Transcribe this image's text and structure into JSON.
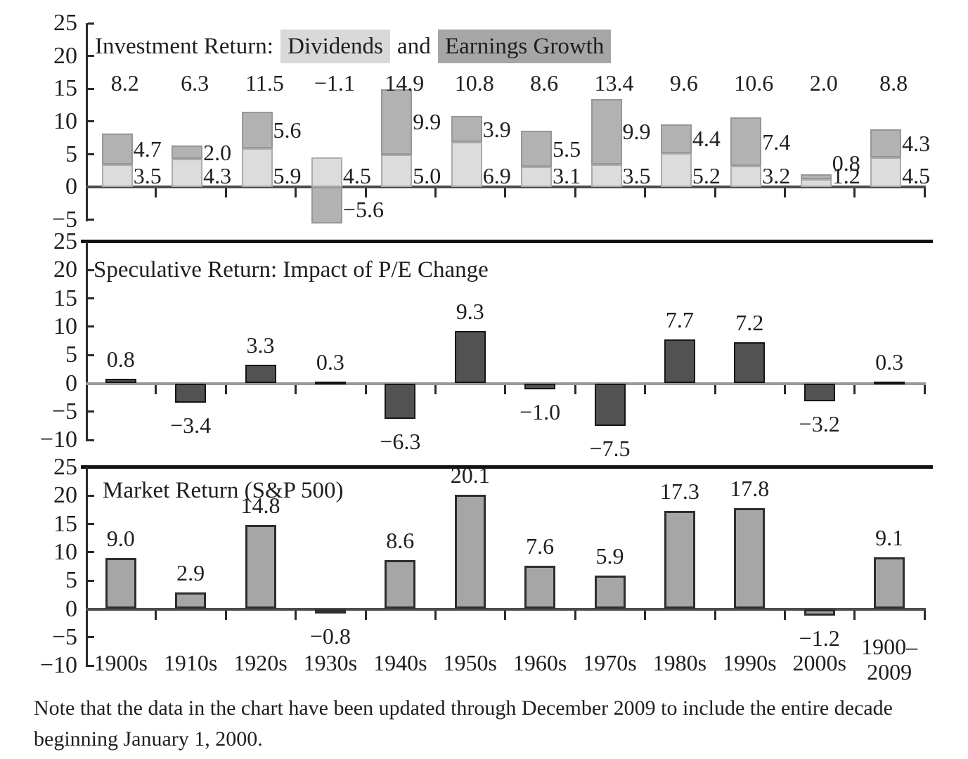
{
  "page": {
    "background": "#ffffff",
    "note": "Note that the data in the chart have been updated through December 2009 to include the entire decade beginning January 1, 2000."
  },
  "chart_data": [
    {
      "id": "investment-return",
      "type": "bar",
      "stacked": true,
      "title_prefix": "Investment Return:",
      "title_join": "and",
      "legend": [
        {
          "label": "Dividends",
          "color": "#d9d9d9"
        },
        {
          "label": "Earnings Growth",
          "color": "#a6a6a6"
        }
      ],
      "legend_position": "title-inline",
      "grid": false,
      "categories": [
        "1900s",
        "1910s",
        "1920s",
        "1930s",
        "1940s",
        "1950s",
        "1960s",
        "1970s",
        "1980s",
        "1990s",
        "2000s",
        "1900–2009"
      ],
      "series": [
        {
          "name": "Dividends",
          "values": [
            3.5,
            4.3,
            5.9,
            4.5,
            5.0,
            6.9,
            3.1,
            3.5,
            5.2,
            3.2,
            1.2,
            4.5
          ]
        },
        {
          "name": "Earnings Growth",
          "values": [
            4.7,
            2.0,
            5.6,
            -5.6,
            9.9,
            3.9,
            5.5,
            9.9,
            4.4,
            7.4,
            0.8,
            4.3
          ]
        }
      ],
      "totals": [
        8.2,
        6.3,
        11.5,
        -1.1,
        14.9,
        10.8,
        8.6,
        13.4,
        9.6,
        10.6,
        2.0,
        8.8
      ],
      "ylim": [
        -5,
        25
      ],
      "yticks": [
        25,
        20,
        15,
        10,
        5,
        0,
        -5
      ]
    },
    {
      "id": "speculative-return",
      "type": "bar",
      "stacked": false,
      "title": "Speculative Return: Impact of P/E Change",
      "bar_color": "#525252",
      "grid": false,
      "categories": [
        "1900s",
        "1910s",
        "1920s",
        "1930s",
        "1940s",
        "1950s",
        "1960s",
        "1970s",
        "1980s",
        "1990s",
        "2000s",
        "1900–2009"
      ],
      "values": [
        0.8,
        -3.4,
        3.3,
        0.3,
        -6.3,
        9.3,
        -1.0,
        -7.5,
        7.7,
        7.2,
        -3.2,
        0.3
      ],
      "ylim": [
        -10,
        25
      ],
      "yticks": [
        25,
        20,
        15,
        10,
        5,
        0,
        -5,
        -10
      ]
    },
    {
      "id": "market-return",
      "type": "bar",
      "stacked": false,
      "title": "Market Return (S&P 500)",
      "bar_color": "#a6a6a6",
      "grid": false,
      "show_category_labels": true,
      "categories": [
        "1900s",
        "1910s",
        "1920s",
        "1930s",
        "1940s",
        "1950s",
        "1960s",
        "1970s",
        "1980s",
        "1990s",
        "2000s",
        "1900–2009"
      ],
      "values": [
        9.0,
        2.9,
        14.8,
        -0.8,
        8.6,
        20.1,
        7.6,
        5.9,
        17.3,
        17.8,
        -1.2,
        9.1
      ],
      "ylim": [
        -10,
        25
      ],
      "yticks": [
        25,
        20,
        15,
        10,
        5,
        0,
        -5,
        -10
      ]
    }
  ]
}
